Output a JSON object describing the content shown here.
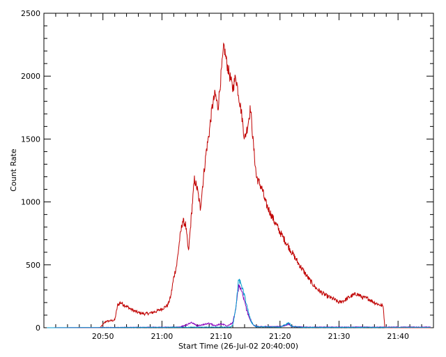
{
  "chart_data": {
    "type": "line",
    "title": "",
    "xlabel": "Start Time (26-Jul-02 20:40:00)",
    "ylabel": "Count Rate",
    "x_unit": "UTC time on 26-Jul-02",
    "xlim": [
      "20:40:00",
      "21:46:00"
    ],
    "ylim": [
      0,
      2500
    ],
    "xticks": [
      "20:50",
      "21:00",
      "21:10",
      "21:20",
      "21:30",
      "21:40"
    ],
    "yticks": [
      0,
      500,
      1000,
      1500,
      2000,
      2500
    ],
    "grid": false,
    "legend": "none",
    "series": [
      {
        "color": "#c00000",
        "points": [
          [
            "20:40:30",
            0
          ],
          [
            "20:49:30",
            0
          ],
          [
            "20:50:30",
            50
          ],
          [
            "20:52:00",
            60
          ],
          [
            "20:52:30",
            180
          ],
          [
            "20:53:00",
            200
          ],
          [
            "20:54:00",
            170
          ],
          [
            "20:55:00",
            140
          ],
          [
            "20:56:00",
            120
          ],
          [
            "20:57:00",
            110
          ],
          [
            "20:58:00",
            115
          ],
          [
            "20:59:00",
            130
          ],
          [
            "21:00:00",
            150
          ],
          [
            "21:01:00",
            180
          ],
          [
            "21:01:30",
            250
          ],
          [
            "21:02:00",
            400
          ],
          [
            "21:02:30",
            500
          ],
          [
            "21:03:00",
            700
          ],
          [
            "21:03:30",
            850
          ],
          [
            "21:04:00",
            820
          ],
          [
            "21:04:30",
            600
          ],
          [
            "21:05:00",
            900
          ],
          [
            "21:05:30",
            1180
          ],
          [
            "21:06:00",
            1100
          ],
          [
            "21:06:30",
            950
          ],
          [
            "21:07:00",
            1180
          ],
          [
            "21:07:30",
            1400
          ],
          [
            "21:08:00",
            1550
          ],
          [
            "21:08:30",
            1750
          ],
          [
            "21:09:00",
            1860
          ],
          [
            "21:09:30",
            1750
          ],
          [
            "21:10:00",
            2000
          ],
          [
            "21:10:30",
            2240
          ],
          [
            "21:11:00",
            2100
          ],
          [
            "21:11:30",
            2000
          ],
          [
            "21:12:00",
            1900
          ],
          [
            "21:12:30",
            2000
          ],
          [
            "21:13:00",
            1850
          ],
          [
            "21:13:30",
            1700
          ],
          [
            "21:14:00",
            1500
          ],
          [
            "21:14:30",
            1600
          ],
          [
            "21:15:00",
            1750
          ],
          [
            "21:15:30",
            1450
          ],
          [
            "21:16:00",
            1200
          ],
          [
            "21:16:30",
            1150
          ],
          [
            "21:17:00",
            1100
          ],
          [
            "21:17:30",
            1000
          ],
          [
            "21:18:00",
            950
          ],
          [
            "21:19:00",
            850
          ],
          [
            "21:20:00",
            760
          ],
          [
            "21:21:00",
            680
          ],
          [
            "21:22:00",
            600
          ],
          [
            "21:23:00",
            520
          ],
          [
            "21:24:00",
            450
          ],
          [
            "21:25:00",
            380
          ],
          [
            "21:26:00",
            320
          ],
          [
            "21:27:00",
            280
          ],
          [
            "21:28:00",
            250
          ],
          [
            "21:29:00",
            230
          ],
          [
            "21:30:00",
            200
          ],
          [
            "21:31:00",
            220
          ],
          [
            "21:32:00",
            250
          ],
          [
            "21:33:00",
            270
          ],
          [
            "21:34:00",
            240
          ],
          [
            "21:35:00",
            230
          ],
          [
            "21:36:00",
            200
          ],
          [
            "21:37:00",
            180
          ],
          [
            "21:37:30",
            170
          ],
          [
            "21:37:45",
            0
          ],
          [
            "21:45:30",
            0
          ]
        ]
      },
      {
        "color": "#8800bb",
        "points": [
          [
            "20:40:30",
            0
          ],
          [
            "21:03:00",
            5
          ],
          [
            "21:04:00",
            20
          ],
          [
            "21:05:00",
            40
          ],
          [
            "21:06:00",
            15
          ],
          [
            "21:07:00",
            25
          ],
          [
            "21:08:00",
            35
          ],
          [
            "21:09:00",
            15
          ],
          [
            "21:10:00",
            30
          ],
          [
            "21:10:30",
            25
          ],
          [
            "21:11:00",
            15
          ],
          [
            "21:12:00",
            40
          ],
          [
            "21:12:30",
            150
          ],
          [
            "21:13:00",
            330
          ],
          [
            "21:13:30",
            300
          ],
          [
            "21:14:00",
            200
          ],
          [
            "21:14:30",
            120
          ],
          [
            "21:15:00",
            60
          ],
          [
            "21:15:30",
            20
          ],
          [
            "21:16:00",
            10
          ],
          [
            "21:20:00",
            8
          ],
          [
            "21:21:00",
            20
          ],
          [
            "21:21:30",
            30
          ],
          [
            "21:22:00",
            10
          ],
          [
            "21:24:00",
            5
          ],
          [
            "21:45:30",
            5
          ]
        ]
      },
      {
        "color": "#0099cc",
        "points": [
          [
            "20:40:30",
            0
          ],
          [
            "21:11:30",
            5
          ],
          [
            "21:12:00",
            20
          ],
          [
            "21:12:30",
            150
          ],
          [
            "21:13:00",
            390
          ],
          [
            "21:13:30",
            330
          ],
          [
            "21:14:00",
            250
          ],
          [
            "21:14:30",
            150
          ],
          [
            "21:15:00",
            60
          ],
          [
            "21:15:30",
            20
          ],
          [
            "21:16:00",
            8
          ],
          [
            "21:20:00",
            5
          ],
          [
            "21:21:00",
            25
          ],
          [
            "21:21:30",
            40
          ],
          [
            "21:22:00",
            10
          ],
          [
            "21:24:00",
            3
          ],
          [
            "21:45:30",
            3
          ]
        ]
      }
    ]
  }
}
